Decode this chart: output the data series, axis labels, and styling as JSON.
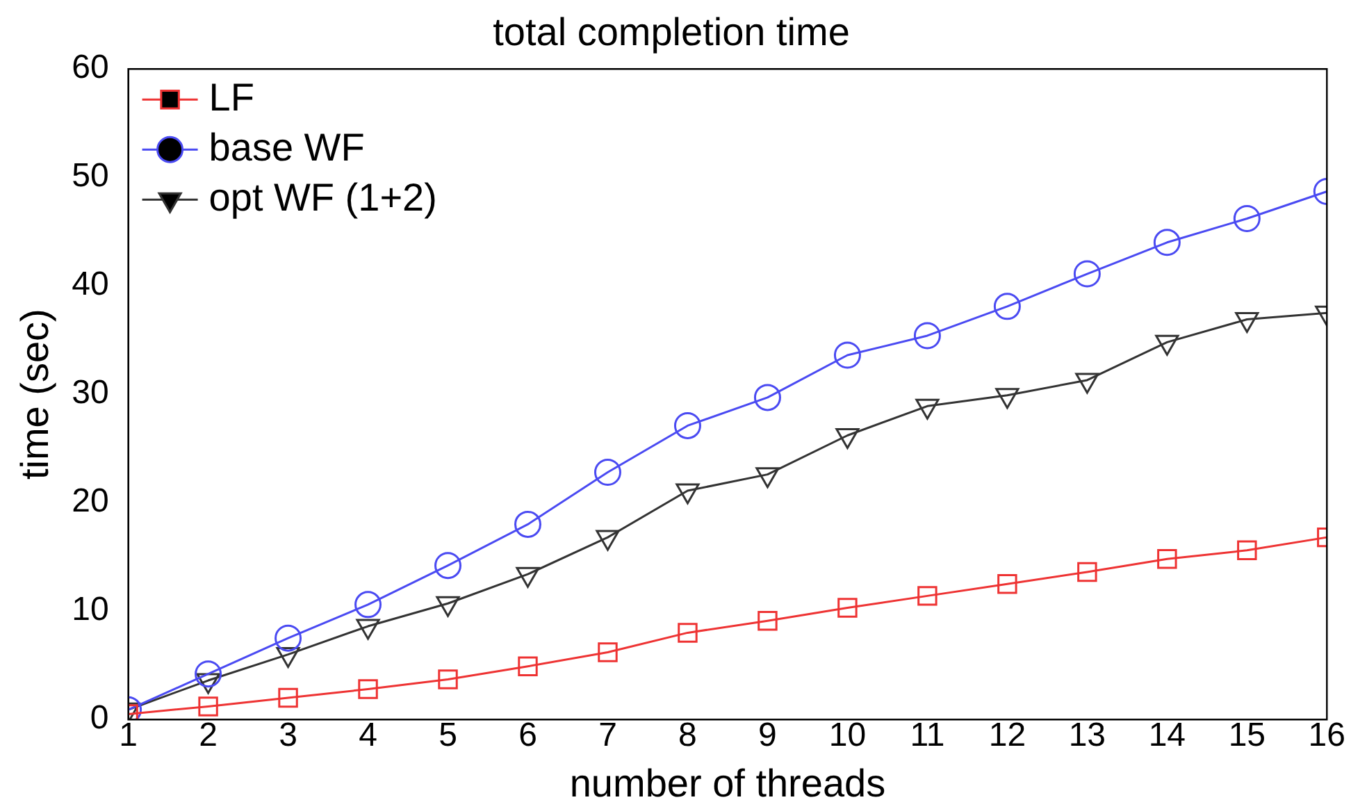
{
  "chart_data": {
    "type": "line",
    "title": "total completion time",
    "xlabel": "number of threads",
    "ylabel": "time (sec)",
    "x": [
      1,
      2,
      3,
      4,
      5,
      6,
      7,
      8,
      9,
      10,
      11,
      12,
      13,
      14,
      15,
      16
    ],
    "xlim": [
      1,
      16
    ],
    "xticks": [
      1,
      2,
      3,
      4,
      5,
      6,
      7,
      8,
      9,
      10,
      11,
      12,
      13,
      14,
      15,
      16
    ],
    "ylim": [
      0,
      60
    ],
    "yticks": [
      0,
      10,
      20,
      30,
      40,
      50,
      60
    ],
    "grid": false,
    "legend": "top left",
    "line_style": "solid",
    "series": [
      {
        "name": "LF",
        "color": "#ee3333",
        "marker": "square",
        "values": [
          0.5,
          1.2,
          2,
          2.8,
          3.7,
          4.9,
          6.2,
          8,
          9.1,
          10.3,
          11.4,
          12.5,
          13.6,
          14.8,
          15.6,
          16.8
        ]
      },
      {
        "name": "base WF",
        "color": "#4a4af2",
        "marker": "circle",
        "values": [
          0.9,
          4.2,
          7.5,
          10.6,
          14.2,
          18,
          22.8,
          27.1,
          29.7,
          33.6,
          35.4,
          38.1,
          41.1,
          44,
          46.2,
          48.7
        ]
      },
      {
        "name": "opt WF (1+2)",
        "color": "#333333",
        "marker": "triangle-down",
        "values": [
          0.9,
          3.6,
          6,
          8.6,
          10.7,
          13.4,
          16.8,
          21.1,
          22.6,
          26.2,
          28.9,
          29.9,
          31.3,
          34.8,
          36.9,
          37.5
        ]
      }
    ]
  }
}
